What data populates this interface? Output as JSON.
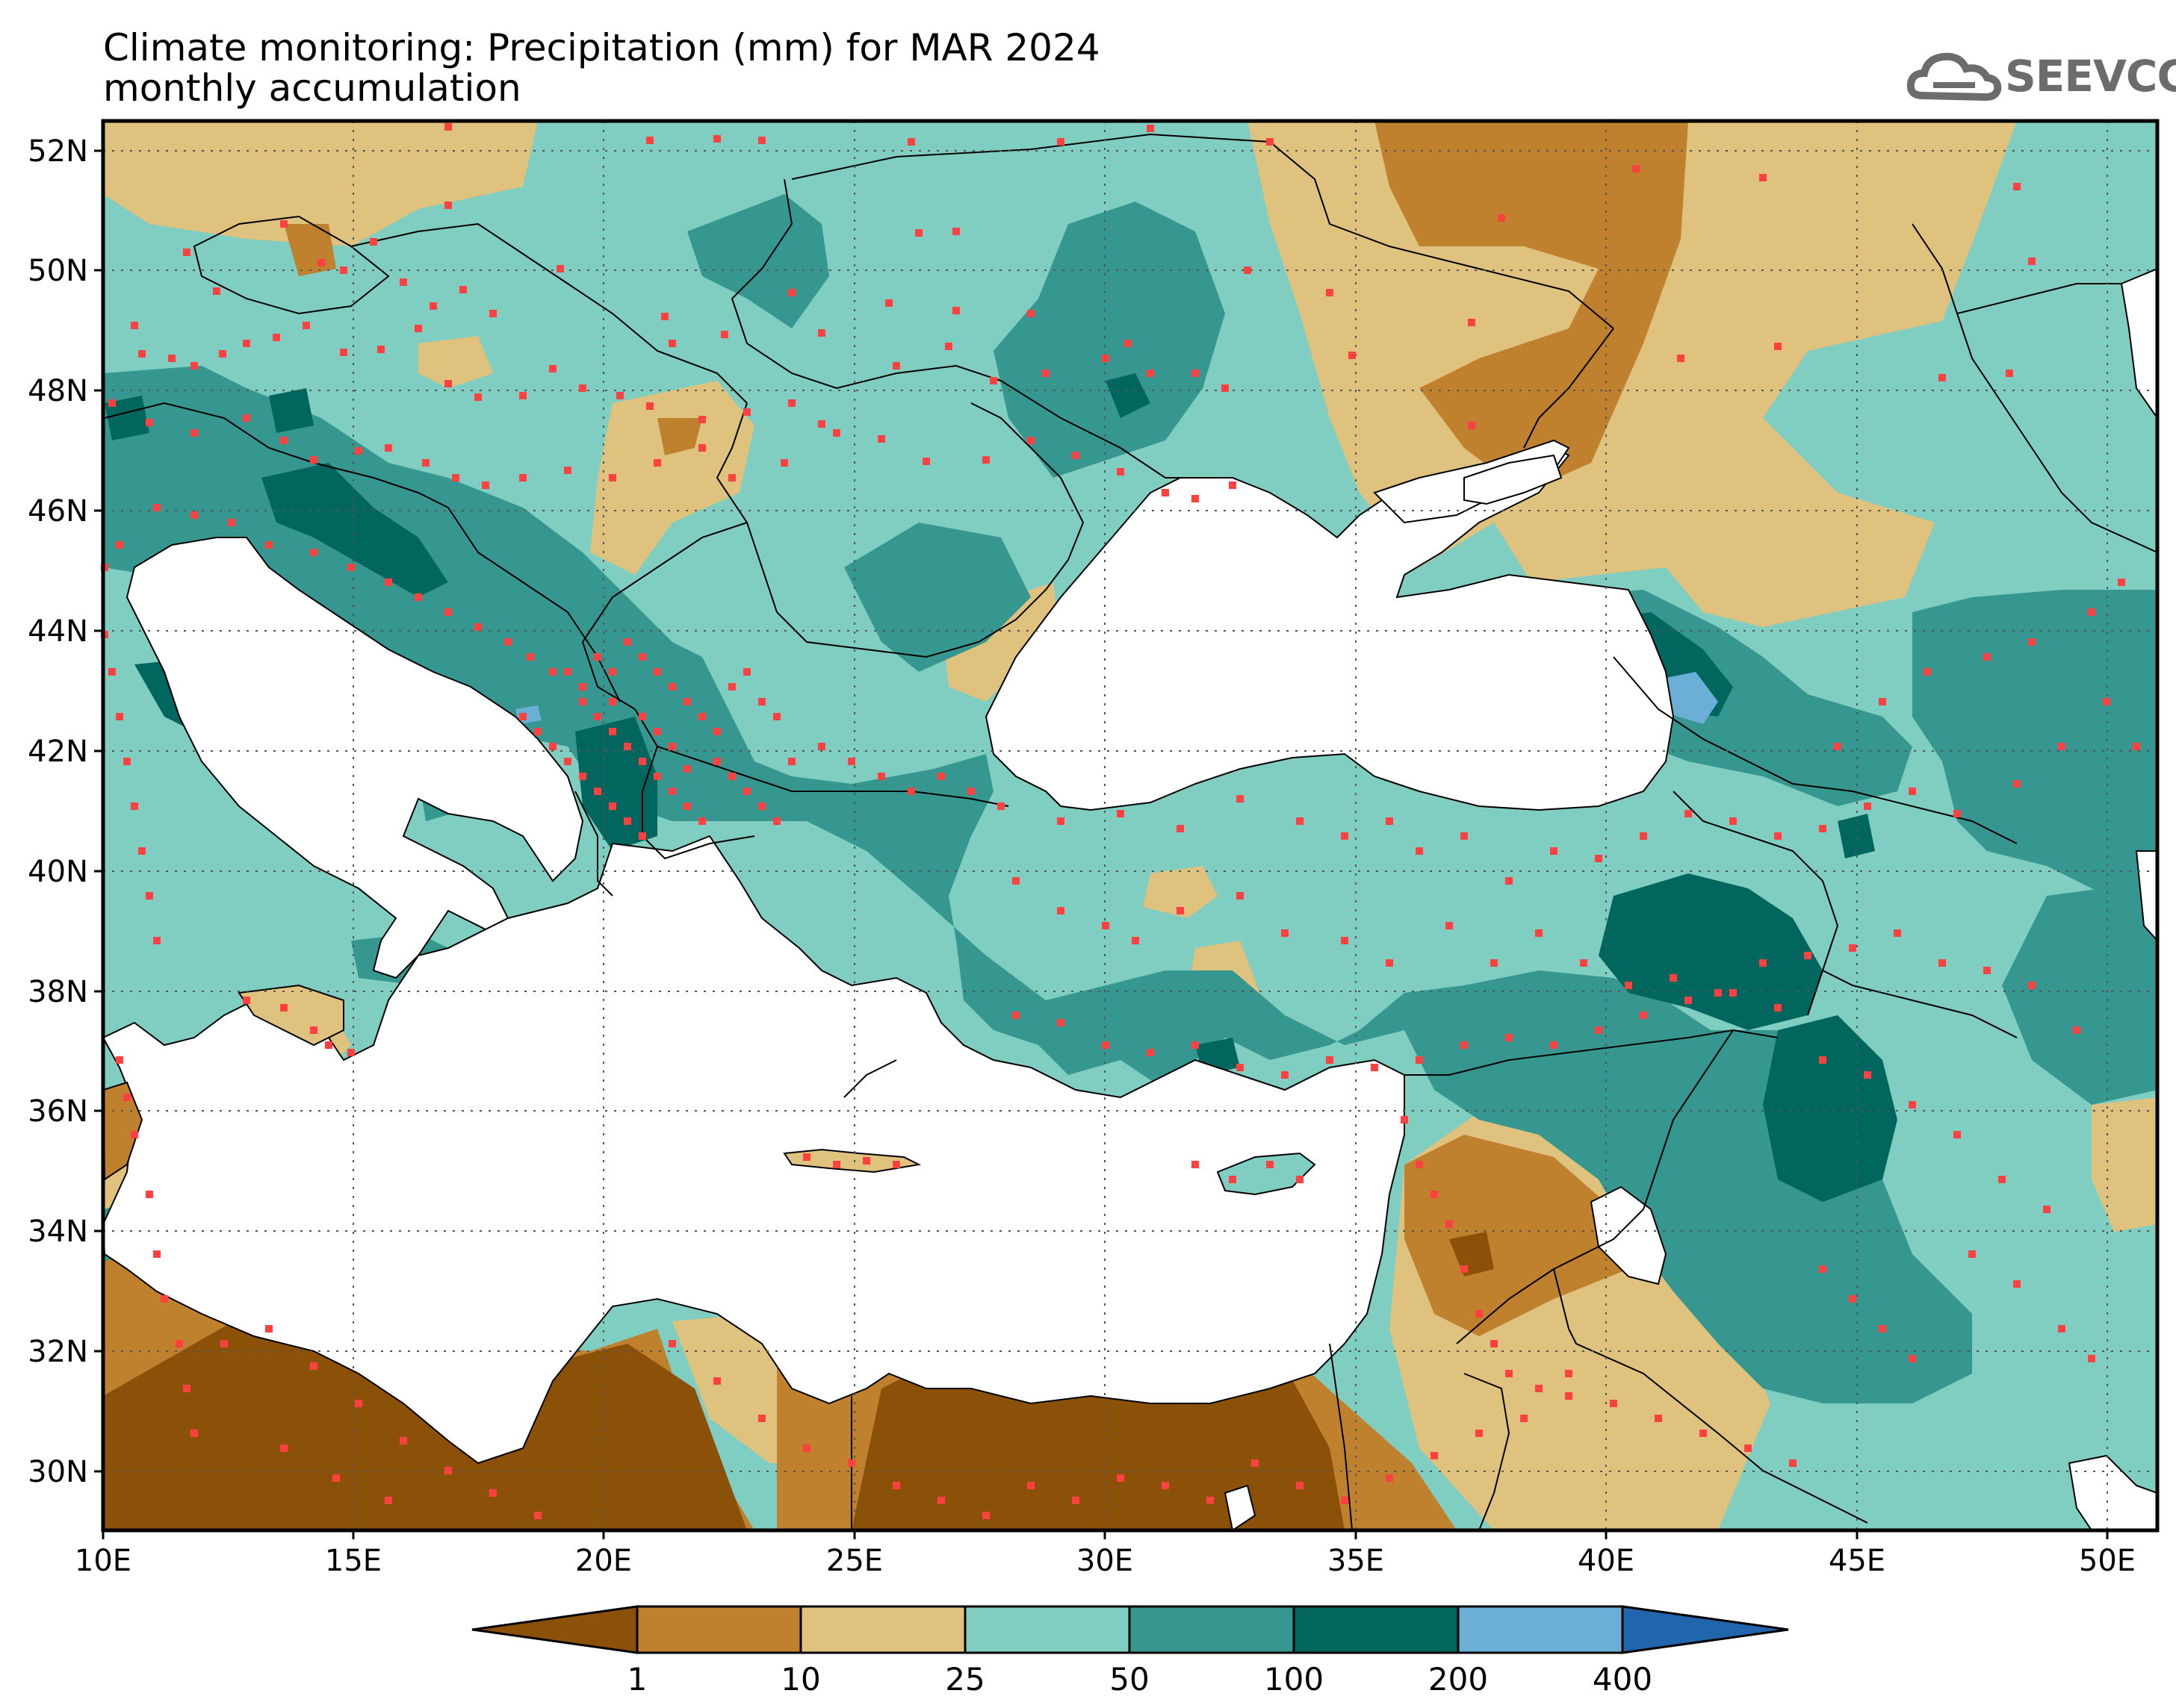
{
  "title": {
    "line1": "Climate monitoring: Precipitation (mm) for MAR 2024",
    "line2": "monthly accumulation"
  },
  "logo": {
    "text": "SEEVCCC",
    "icon": "cloud-icon"
  },
  "map": {
    "lon_range": [
      10,
      51
    ],
    "lat_range": [
      29,
      52.5
    ],
    "lat_labels": [
      "52N",
      "50N",
      "48N",
      "46N",
      "44N",
      "42N",
      "40N",
      "38N",
      "36N",
      "34N",
      "32N",
      "30N"
    ],
    "lon_labels": [
      "10E",
      "15E",
      "20E",
      "25E",
      "30E",
      "35E",
      "40E",
      "45E",
      "50E"
    ],
    "station_marker_color": "#ff4040",
    "sea_color": "#ffffff"
  },
  "colorbar": {
    "labels": [
      "1",
      "10",
      "25",
      "50",
      "100",
      "200",
      "400"
    ],
    "colors": [
      "#8c5109",
      "#bf812d",
      "#dfc27d",
      "#80cdc1",
      "#35978f",
      "#01665e",
      "#6baed6",
      "#2166ac"
    ]
  }
}
